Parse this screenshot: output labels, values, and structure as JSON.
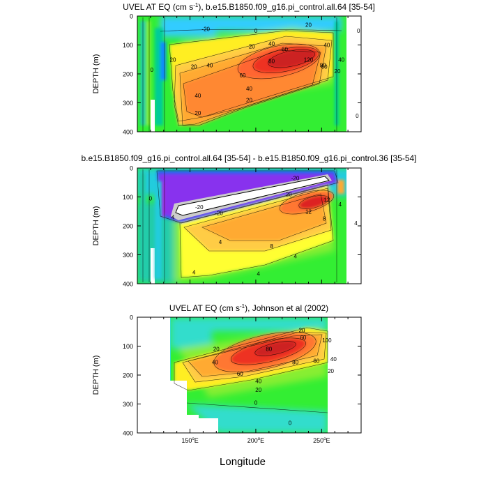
{
  "figure": {
    "xlabel": "Longitude"
  },
  "chart_data": [
    {
      "type": "heatmap",
      "title_main": "UVEL AT EQ (cm s",
      "title_sup": "-1",
      "title_rest": "), b.e15.B1850.f09_g16.pi_control.all.64 [35-54]",
      "ylabel": "DEPTH (m)",
      "xlim": [
        110,
        280
      ],
      "ylim": [
        400,
        0
      ],
      "yticks": [
        "0",
        "100",
        "200",
        "300",
        "400"
      ],
      "core": {
        "lon": 232,
        "depth": 150,
        "max": 120
      },
      "contour_labels": [
        {
          "text": "-20",
          "lon": 162,
          "depth": 45
        },
        {
          "text": "0",
          "lon": 200,
          "depth": 50
        },
        {
          "text": "20",
          "lon": 240,
          "depth": 30
        },
        {
          "text": "0",
          "lon": 278,
          "depth": 50
        },
        {
          "text": "20",
          "lon": 197,
          "depth": 105
        },
        {
          "text": "40",
          "lon": 212,
          "depth": 95
        },
        {
          "text": "60",
          "lon": 222,
          "depth": 115
        },
        {
          "text": "80",
          "lon": 212,
          "depth": 155
        },
        {
          "text": "120",
          "lon": 240,
          "depth": 150
        },
        {
          "text": "80",
          "lon": 251,
          "depth": 170
        },
        {
          "text": "40",
          "lon": 254,
          "depth": 100
        },
        {
          "text": "60",
          "lon": 252,
          "depth": 175
        },
        {
          "text": "40",
          "lon": 265,
          "depth": 150
        },
        {
          "text": "20",
          "lon": 262,
          "depth": 190
        },
        {
          "text": "20",
          "lon": 153,
          "depth": 175
        },
        {
          "text": "40",
          "lon": 165,
          "depth": 170
        },
        {
          "text": "60",
          "lon": 190,
          "depth": 205
        },
        {
          "text": "40",
          "lon": 195,
          "depth": 250
        },
        {
          "text": "20",
          "lon": 195,
          "depth": 290
        },
        {
          "text": "40",
          "lon": 156,
          "depth": 275
        },
        {
          "text": "20",
          "lon": 156,
          "depth": 335
        },
        {
          "text": "20",
          "lon": 137,
          "depth": 150
        },
        {
          "text": "0",
          "lon": 121,
          "depth": 185
        },
        {
          "text": "0",
          "lon": 277,
          "depth": 345
        }
      ]
    },
    {
      "type": "heatmap",
      "title": "b.e15.B1850.f09_g16.pi_control.all.64 [35-54] - b.e15.B1850.f09_g16.pi_control.36 [35-54]",
      "ylabel": "DEPTH (m)",
      "xlim": [
        110,
        280
      ],
      "ylim": [
        400,
        0
      ],
      "yticks": [
        "0",
        "100",
        "200",
        "300",
        "400"
      ],
      "core": {
        "lon": 258,
        "depth": 120,
        "max": 16
      },
      "contour_labels": [
        {
          "text": "-20",
          "lon": 230,
          "depth": 35
        },
        {
          "text": "-20",
          "lon": 157,
          "depth": 135
        },
        {
          "text": "-20",
          "lon": 172,
          "depth": 155
        },
        {
          "text": "20",
          "lon": 225,
          "depth": 90
        },
        {
          "text": "12",
          "lon": 240,
          "depth": 150
        },
        {
          "text": "8",
          "lon": 252,
          "depth": 175
        },
        {
          "text": "12",
          "lon": 254,
          "depth": 110
        },
        {
          "text": "4",
          "lon": 264,
          "depth": 125
        },
        {
          "text": "8",
          "lon": 212,
          "depth": 270
        },
        {
          "text": "4",
          "lon": 173,
          "depth": 255
        },
        {
          "text": "4",
          "lon": 230,
          "depth": 305
        },
        {
          "text": "4",
          "lon": 202,
          "depth": 365
        },
        {
          "text": "4",
          "lon": 153,
          "depth": 360
        },
        {
          "text": "0",
          "lon": 120,
          "depth": 105
        },
        {
          "text": "4",
          "lon": 137,
          "depth": 170
        },
        {
          "text": "4",
          "lon": 276,
          "depth": 190
        }
      ]
    },
    {
      "type": "heatmap",
      "title_main": "UVEL AT EQ (cm s",
      "title_sup": "-1",
      "title_rest": "), Johnson et al (2002)",
      "ylabel": "DEPTH (m)",
      "xlim": [
        110,
        280
      ],
      "ylim": [
        400,
        0
      ],
      "yticks": [
        "0",
        "100",
        "200",
        "300",
        "400"
      ],
      "xticks": [
        {
          "value": 150,
          "label": "150",
          "sup": "o",
          "suffix": "E"
        },
        {
          "value": 200,
          "label": "200",
          "sup": "o",
          "suffix": "E"
        },
        {
          "value": 250,
          "label": "250",
          "sup": "o",
          "suffix": "E"
        }
      ],
      "core": {
        "lon": 228,
        "depth": 115,
        "max": 100
      },
      "contour_labels": [
        {
          "text": "20",
          "lon": 235,
          "depth": 45
        },
        {
          "text": "60",
          "lon": 236,
          "depth": 70
        },
        {
          "text": "100",
          "lon": 254,
          "depth": 80
        },
        {
          "text": "20",
          "lon": 170,
          "depth": 110
        },
        {
          "text": "40",
          "lon": 169,
          "depth": 155
        },
        {
          "text": "80",
          "lon": 210,
          "depth": 110
        },
        {
          "text": "80",
          "lon": 230,
          "depth": 155
        },
        {
          "text": "60",
          "lon": 246,
          "depth": 150
        },
        {
          "text": "40",
          "lon": 259,
          "depth": 145
        },
        {
          "text": "20",
          "lon": 257,
          "depth": 185
        },
        {
          "text": "60",
          "lon": 188,
          "depth": 195
        },
        {
          "text": "40",
          "lon": 202,
          "depth": 220
        },
        {
          "text": "20",
          "lon": 202,
          "depth": 250
        },
        {
          "text": "0",
          "lon": 200,
          "depth": 295
        },
        {
          "text": "0",
          "lon": 226,
          "depth": 365
        }
      ]
    }
  ]
}
